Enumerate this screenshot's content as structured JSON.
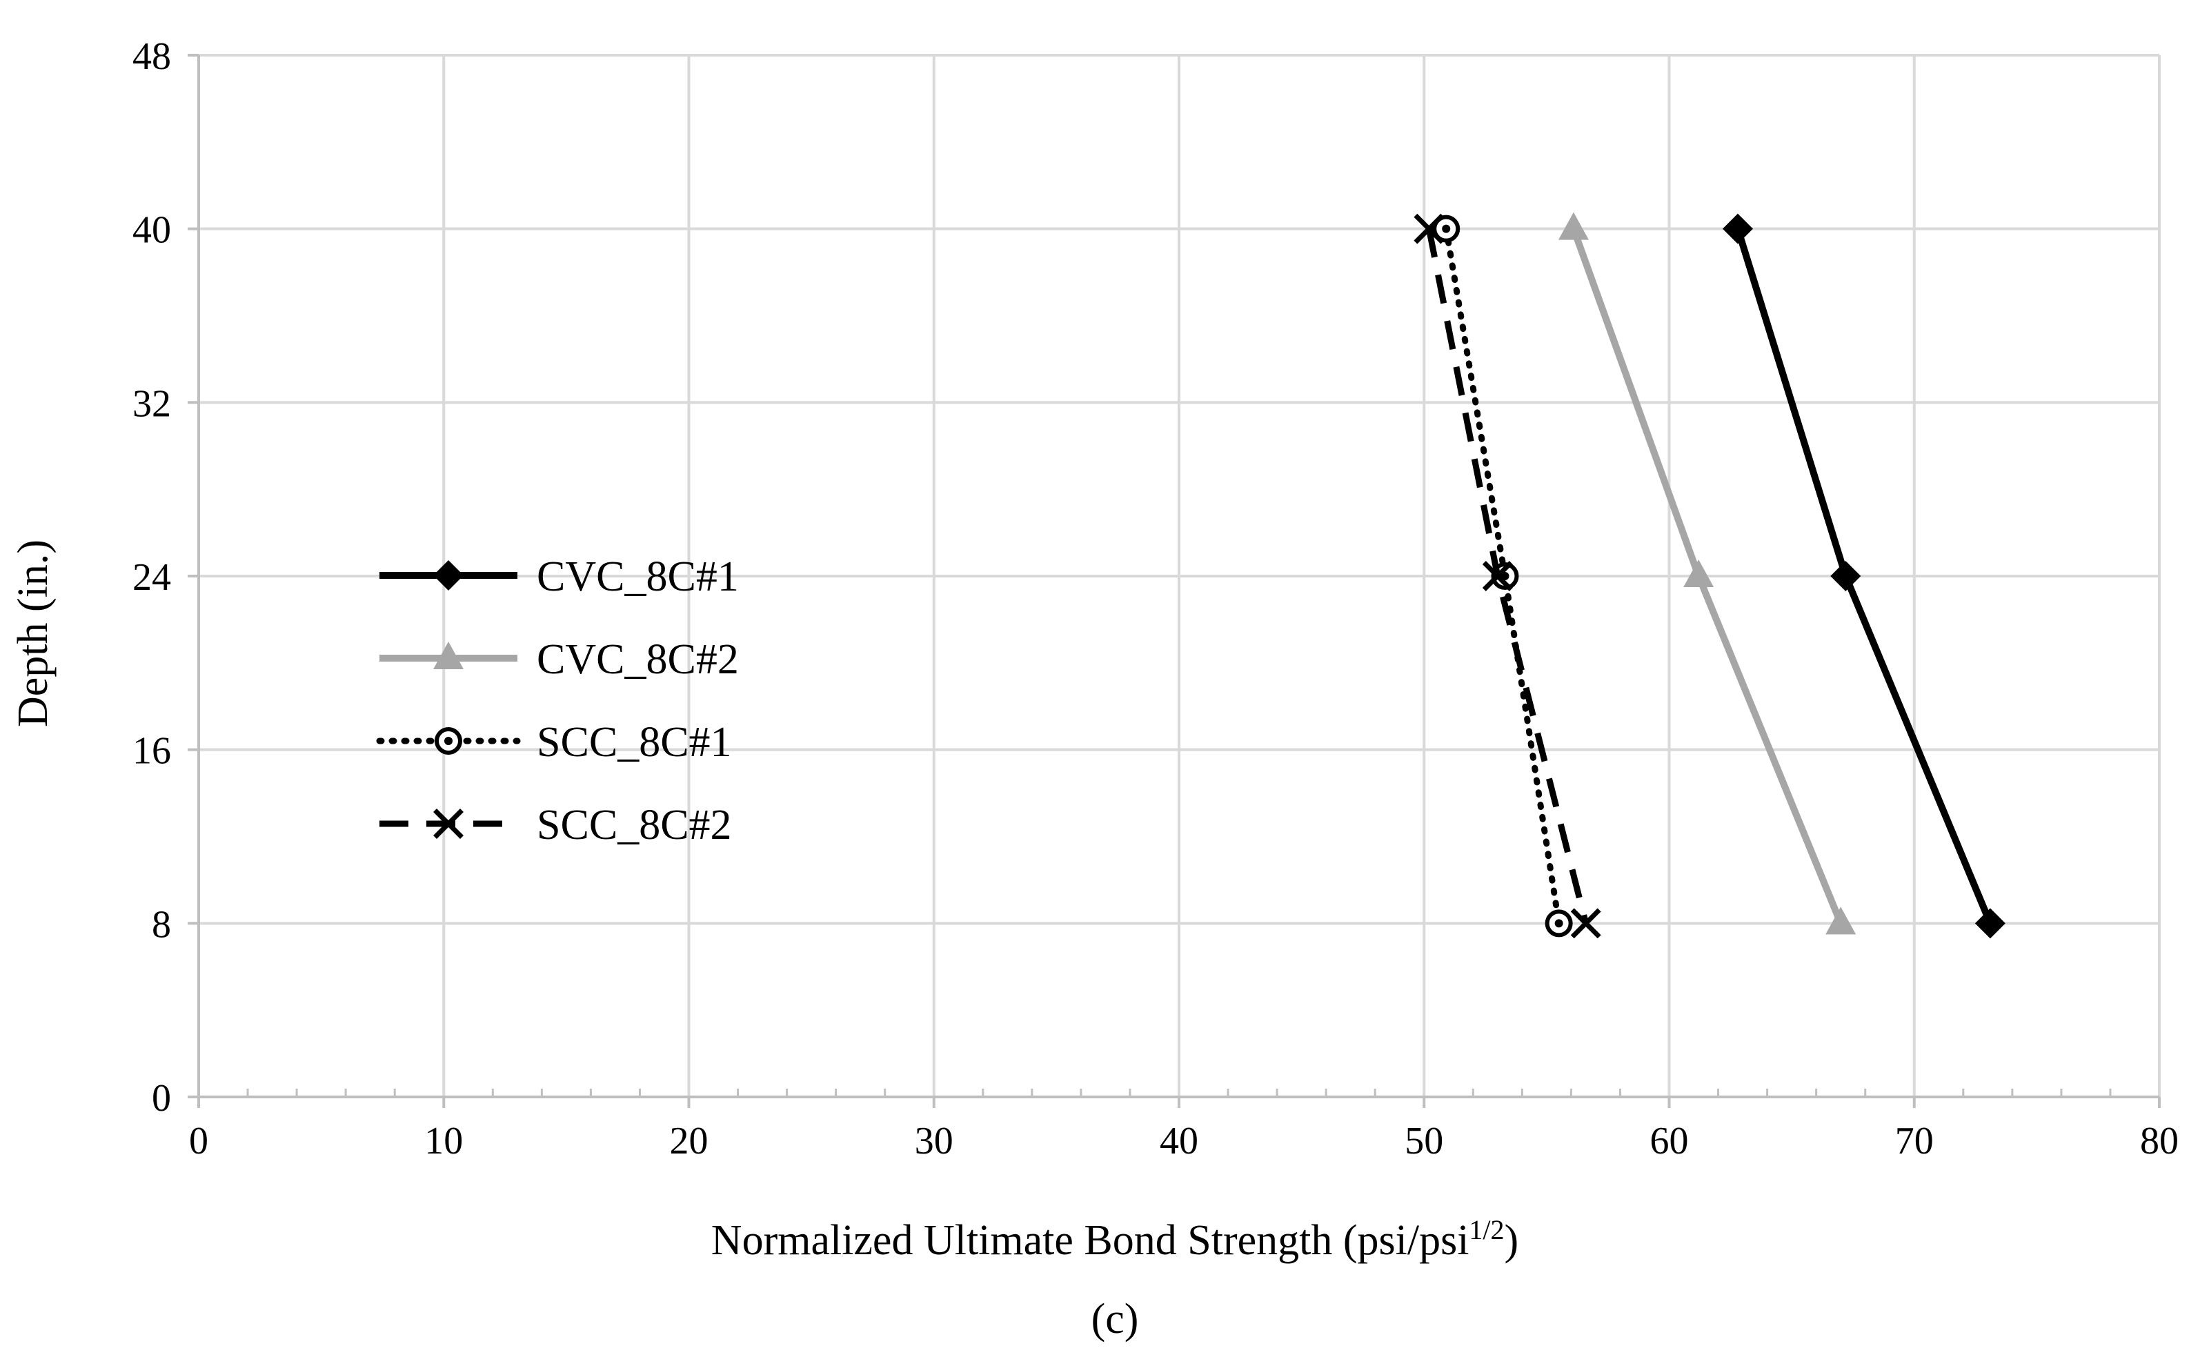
{
  "chart_data": {
    "type": "line",
    "xlabel": "Normalized Ultimate Bond Strength (psi/psi",
    "xlabel_superscript": "1/2",
    "xlabel_suffix": ")",
    "ylabel": "Depth (in.)",
    "panel_label_open": "(",
    "panel_label_letter": "c",
    "panel_label_close": ")",
    "xlim": [
      0,
      80
    ],
    "ylim": [
      0,
      48
    ],
    "x_ticks": [
      0,
      10,
      20,
      30,
      40,
      50,
      60,
      70,
      80
    ],
    "x_tick_labels": [
      "0",
      "10",
      "20",
      "30",
      "40",
      "50",
      "60",
      "70",
      "80"
    ],
    "x_minor_step": 2,
    "y_ticks": [
      0,
      8,
      16,
      24,
      32,
      40,
      48
    ],
    "y_tick_labels": [
      "0",
      "8",
      "16",
      "24",
      "32",
      "40",
      "48"
    ],
    "grid": true,
    "legend_position": "middle-left",
    "series": [
      {
        "name": "CVC_8C#1",
        "color": "#000000",
        "marker": "diamond",
        "line_style": "solid",
        "points": [
          {
            "x": 62.8,
            "y": 40
          },
          {
            "x": 67.2,
            "y": 24
          },
          {
            "x": 73.1,
            "y": 8
          }
        ]
      },
      {
        "name": "CVC_8C#2",
        "color": "#a6a6a6",
        "marker": "triangle",
        "line_style": "solid",
        "points": [
          {
            "x": 56.1,
            "y": 40
          },
          {
            "x": 61.2,
            "y": 24
          },
          {
            "x": 67.0,
            "y": 8
          }
        ]
      },
      {
        "name": "SCC_8C#1",
        "color": "#000000",
        "marker": "circle-dot",
        "line_style": "dotted",
        "points": [
          {
            "x": 50.9,
            "y": 40
          },
          {
            "x": 53.3,
            "y": 24
          },
          {
            "x": 55.5,
            "y": 8
          }
        ]
      },
      {
        "name": "SCC_8C#2",
        "color": "#000000",
        "marker": "x",
        "line_style": "dashed",
        "points": [
          {
            "x": 50.2,
            "y": 40
          },
          {
            "x": 53.0,
            "y": 24
          },
          {
            "x": 56.6,
            "y": 8
          }
        ]
      }
    ]
  }
}
